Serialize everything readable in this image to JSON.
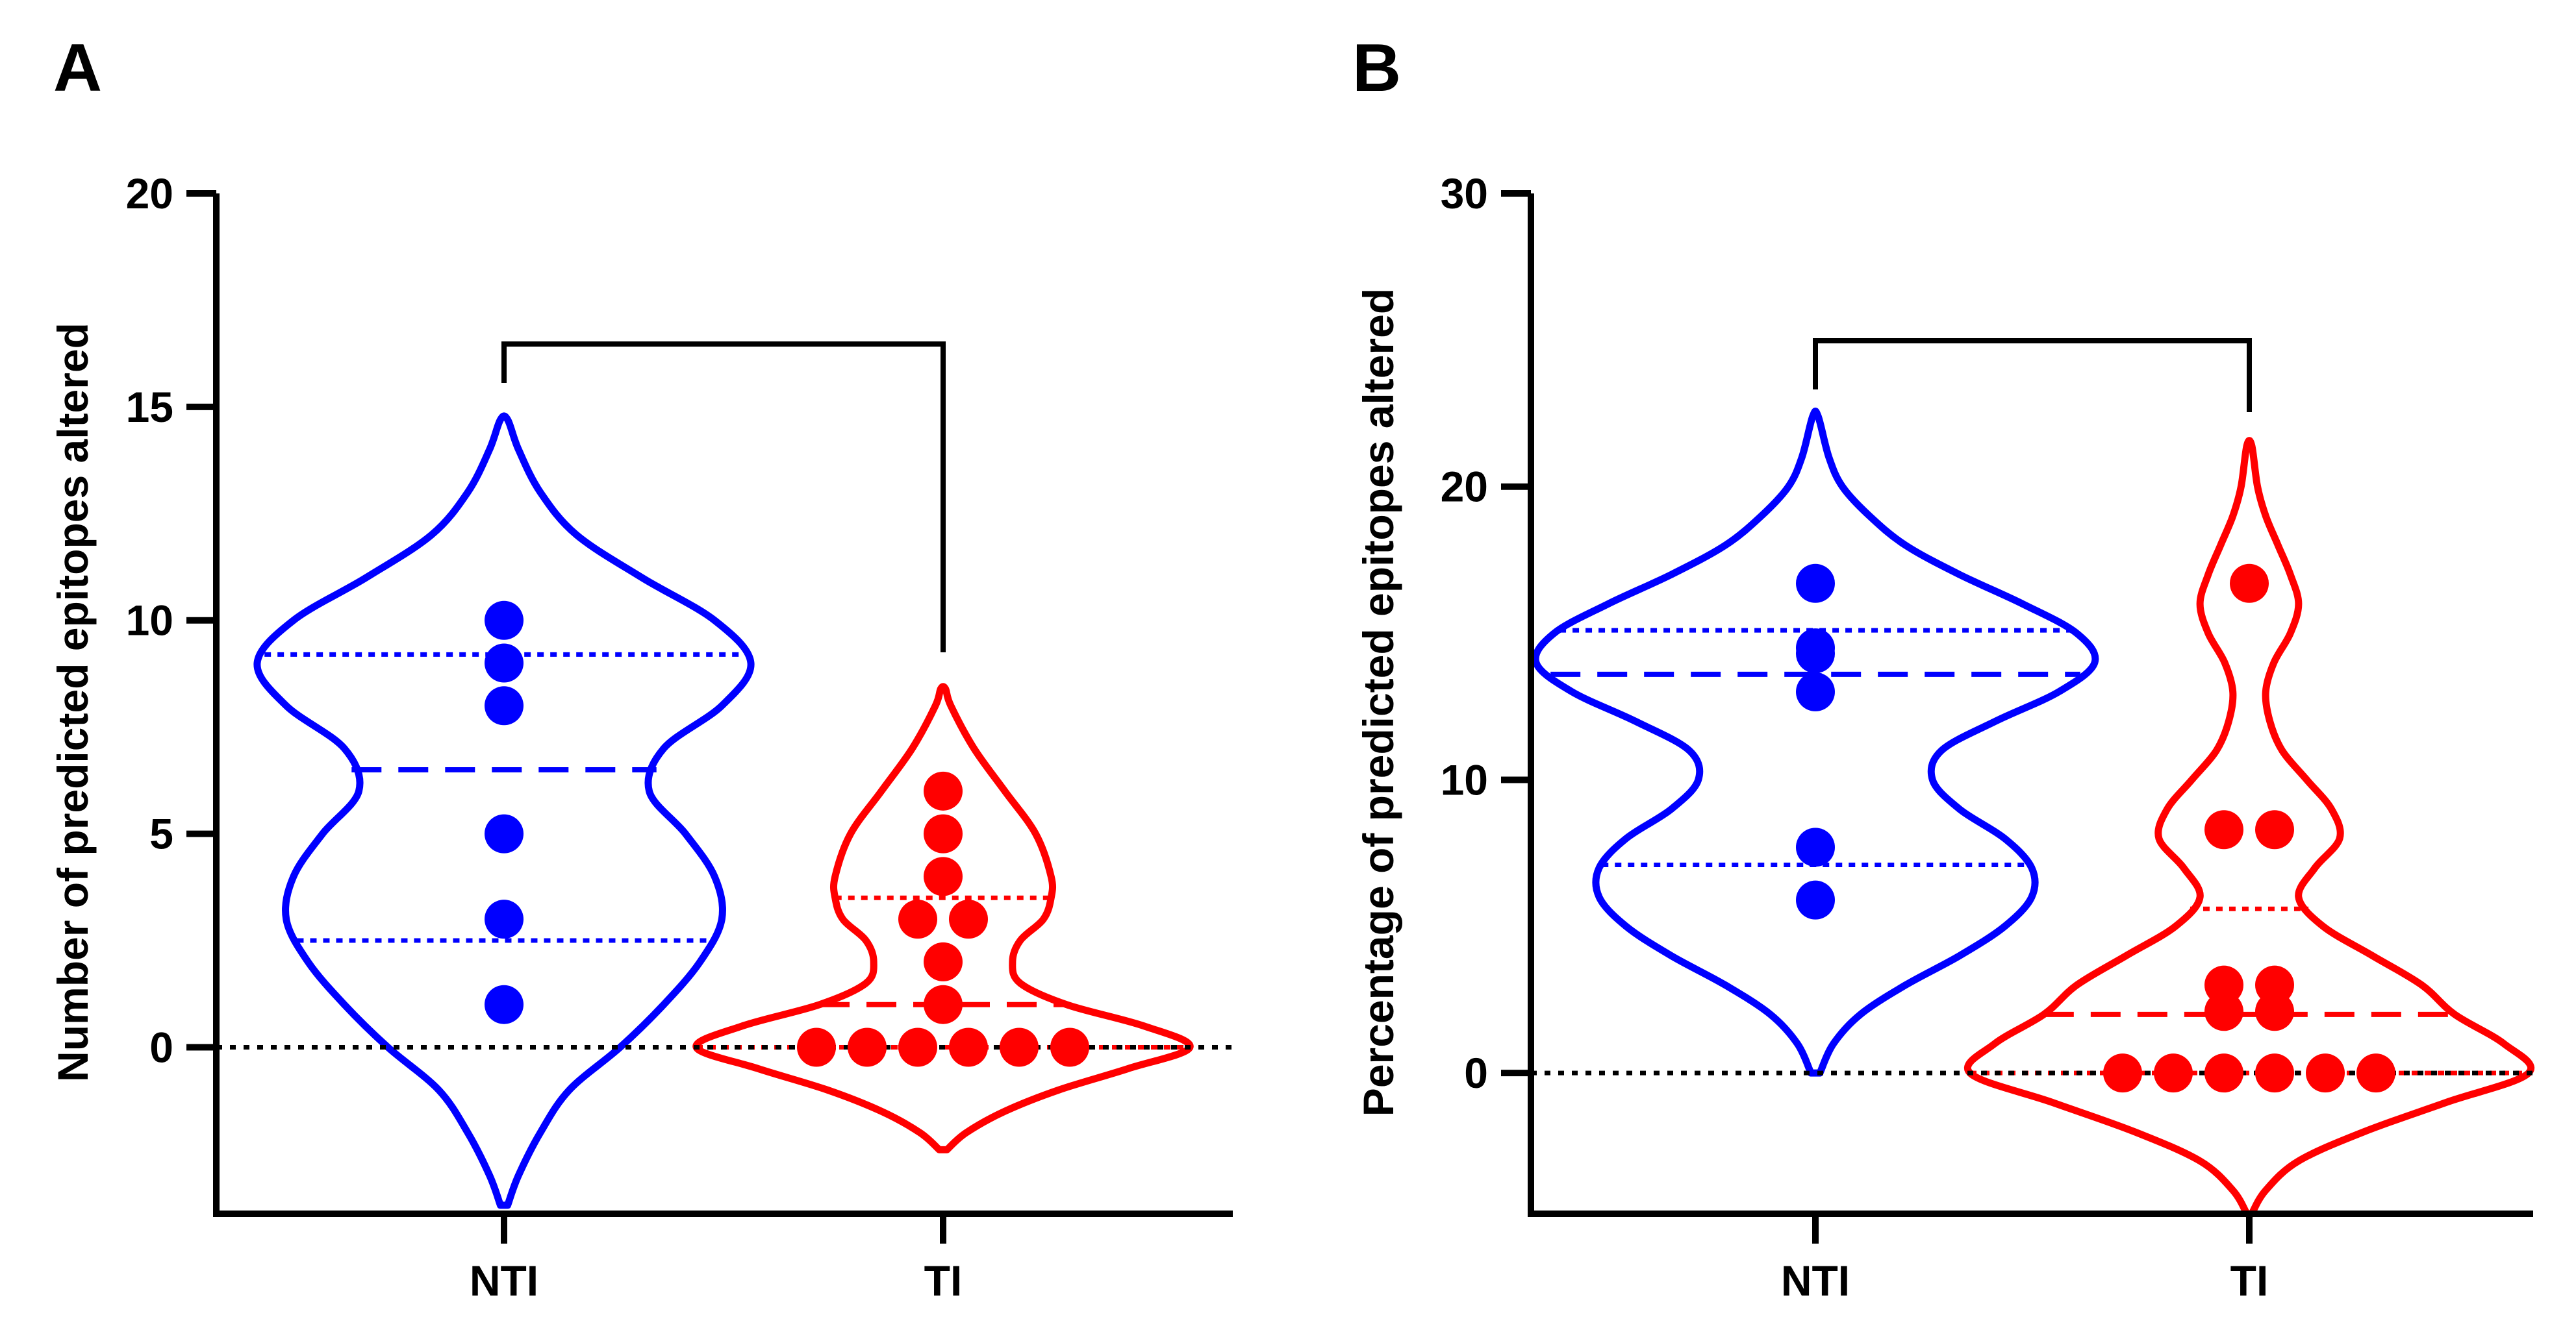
{
  "colors": {
    "NTI": "#0000ff",
    "TI": "#ff0000",
    "axis": "#000000"
  },
  "chart_data": [
    {
      "panel": "A",
      "type": "violin",
      "ylabel": "Number of predicted epitopes altered",
      "yticks": [
        0,
        5,
        10,
        15,
        20
      ],
      "ytick_labels": [
        "0",
        "5",
        "10",
        "15",
        "20"
      ],
      "ylim": [
        -3.9,
        20
      ],
      "categories": [
        "NTI",
        "TI"
      ],
      "reference_line": 0,
      "significance_bracket": true,
      "groups": [
        {
          "name": "NTI",
          "points": [
            10,
            9,
            8,
            5,
            3,
            1
          ],
          "median": 6.5,
          "q1": 2.5,
          "q3": 9.2,
          "violin_range": [
            -3.7,
            14.7
          ],
          "density": [
            [
              -3.7,
              0.005
            ],
            [
              -3,
              0.02
            ],
            [
              -2,
              0.05
            ],
            [
              -1,
              0.09
            ],
            [
              0,
              0.16
            ],
            [
              1,
              0.22
            ],
            [
              2,
              0.27
            ],
            [
              3,
              0.3
            ],
            [
              4,
              0.29
            ],
            [
              5,
              0.25
            ],
            [
              6,
              0.2
            ],
            [
              7,
              0.22
            ],
            [
              8,
              0.3
            ],
            [
              9,
              0.34
            ],
            [
              10,
              0.29
            ],
            [
              11,
              0.19
            ],
            [
              12,
              0.1
            ],
            [
              13,
              0.05
            ],
            [
              14,
              0.02
            ],
            [
              14.7,
              0.005
            ]
          ]
        },
        {
          "name": "TI",
          "points": [
            6,
            5,
            4,
            3,
            3,
            2,
            1,
            0,
            0,
            0,
            0,
            0,
            0
          ],
          "median": 1,
          "q1": 0,
          "q3": 3.5,
          "violin_range": [
            -2.4,
            8.4
          ],
          "density": [
            [
              -2.4,
              0.005
            ],
            [
              -2,
              0.03
            ],
            [
              -1.5,
              0.08
            ],
            [
              -1,
              0.15
            ],
            [
              -0.5,
              0.24
            ],
            [
              0,
              0.32
            ],
            [
              0.5,
              0.26
            ],
            [
              1,
              0.16
            ],
            [
              1.5,
              0.1
            ],
            [
              2,
              0.09
            ],
            [
              2.5,
              0.1
            ],
            [
              3,
              0.13
            ],
            [
              3.5,
              0.14
            ],
            [
              4,
              0.14
            ],
            [
              5,
              0.12
            ],
            [
              6,
              0.08
            ],
            [
              7,
              0.04
            ],
            [
              8,
              0.01
            ],
            [
              8.4,
              0.003
            ]
          ]
        }
      ]
    },
    {
      "panel": "B",
      "type": "violin",
      "ylabel": "Percentage of predicted epitopes altered",
      "yticks": [
        0,
        10,
        20,
        30
      ],
      "ytick_labels": [
        "0",
        "10",
        "20",
        "30"
      ],
      "ylim": [
        -4.8,
        30
      ],
      "categories": [
        "NTI",
        "TI"
      ],
      "reference_line": 0,
      "significance_bracket": true,
      "groups": [
        {
          "name": "NTI",
          "points": [
            16.7,
            14.5,
            14.3,
            13,
            7.7,
            5.9
          ],
          "median": 13.6,
          "q1": 7.1,
          "q3": 15.1,
          "violin_range": [
            0,
            22.4
          ],
          "density": [
            [
              0,
              0.005
            ],
            [
              1,
              0.02
            ],
            [
              2,
              0.05
            ],
            [
              3,
              0.1
            ],
            [
              4,
              0.16
            ],
            [
              5,
              0.21
            ],
            [
              6,
              0.24
            ],
            [
              7,
              0.24
            ],
            [
              8,
              0.21
            ],
            [
              9,
              0.16
            ],
            [
              10,
              0.13
            ],
            [
              11,
              0.14
            ],
            [
              12,
              0.2
            ],
            [
              13,
              0.27
            ],
            [
              14,
              0.31
            ],
            [
              15,
              0.29
            ],
            [
              16,
              0.23
            ],
            [
              17,
              0.16
            ],
            [
              18,
              0.1
            ],
            [
              19,
              0.06
            ],
            [
              20,
              0.03
            ],
            [
              21,
              0.015
            ],
            [
              22.4,
              0.003
            ]
          ]
        },
        {
          "name": "TI",
          "points": [
            16.7,
            8.3,
            8.3,
            3,
            3,
            2.1,
            2.1,
            0,
            0,
            0,
            0,
            0,
            0
          ],
          "median": 2,
          "q1": 0,
          "q3": 5.6,
          "violin_range": [
            -4.8,
            21.4
          ],
          "density": [
            [
              -4.8,
              0.003
            ],
            [
              -4,
              0.02
            ],
            [
              -3,
              0.06
            ],
            [
              -2,
              0.14
            ],
            [
              -1,
              0.24
            ],
            [
              0,
              0.34
            ],
            [
              1,
              0.31
            ],
            [
              2,
              0.25
            ],
            [
              3,
              0.21
            ],
            [
              4,
              0.15
            ],
            [
              5,
              0.09
            ],
            [
              6,
              0.06
            ],
            [
              7,
              0.08
            ],
            [
              8,
              0.11
            ],
            [
              9,
              0.1
            ],
            [
              10,
              0.07
            ],
            [
              11,
              0.04
            ],
            [
              12,
              0.025
            ],
            [
              13,
              0.02
            ],
            [
              14,
              0.03
            ],
            [
              15,
              0.05
            ],
            [
              16,
              0.06
            ],
            [
              17,
              0.05
            ],
            [
              18,
              0.035
            ],
            [
              19,
              0.02
            ],
            [
              20,
              0.01
            ],
            [
              21.4,
              0.003
            ]
          ]
        }
      ]
    }
  ]
}
